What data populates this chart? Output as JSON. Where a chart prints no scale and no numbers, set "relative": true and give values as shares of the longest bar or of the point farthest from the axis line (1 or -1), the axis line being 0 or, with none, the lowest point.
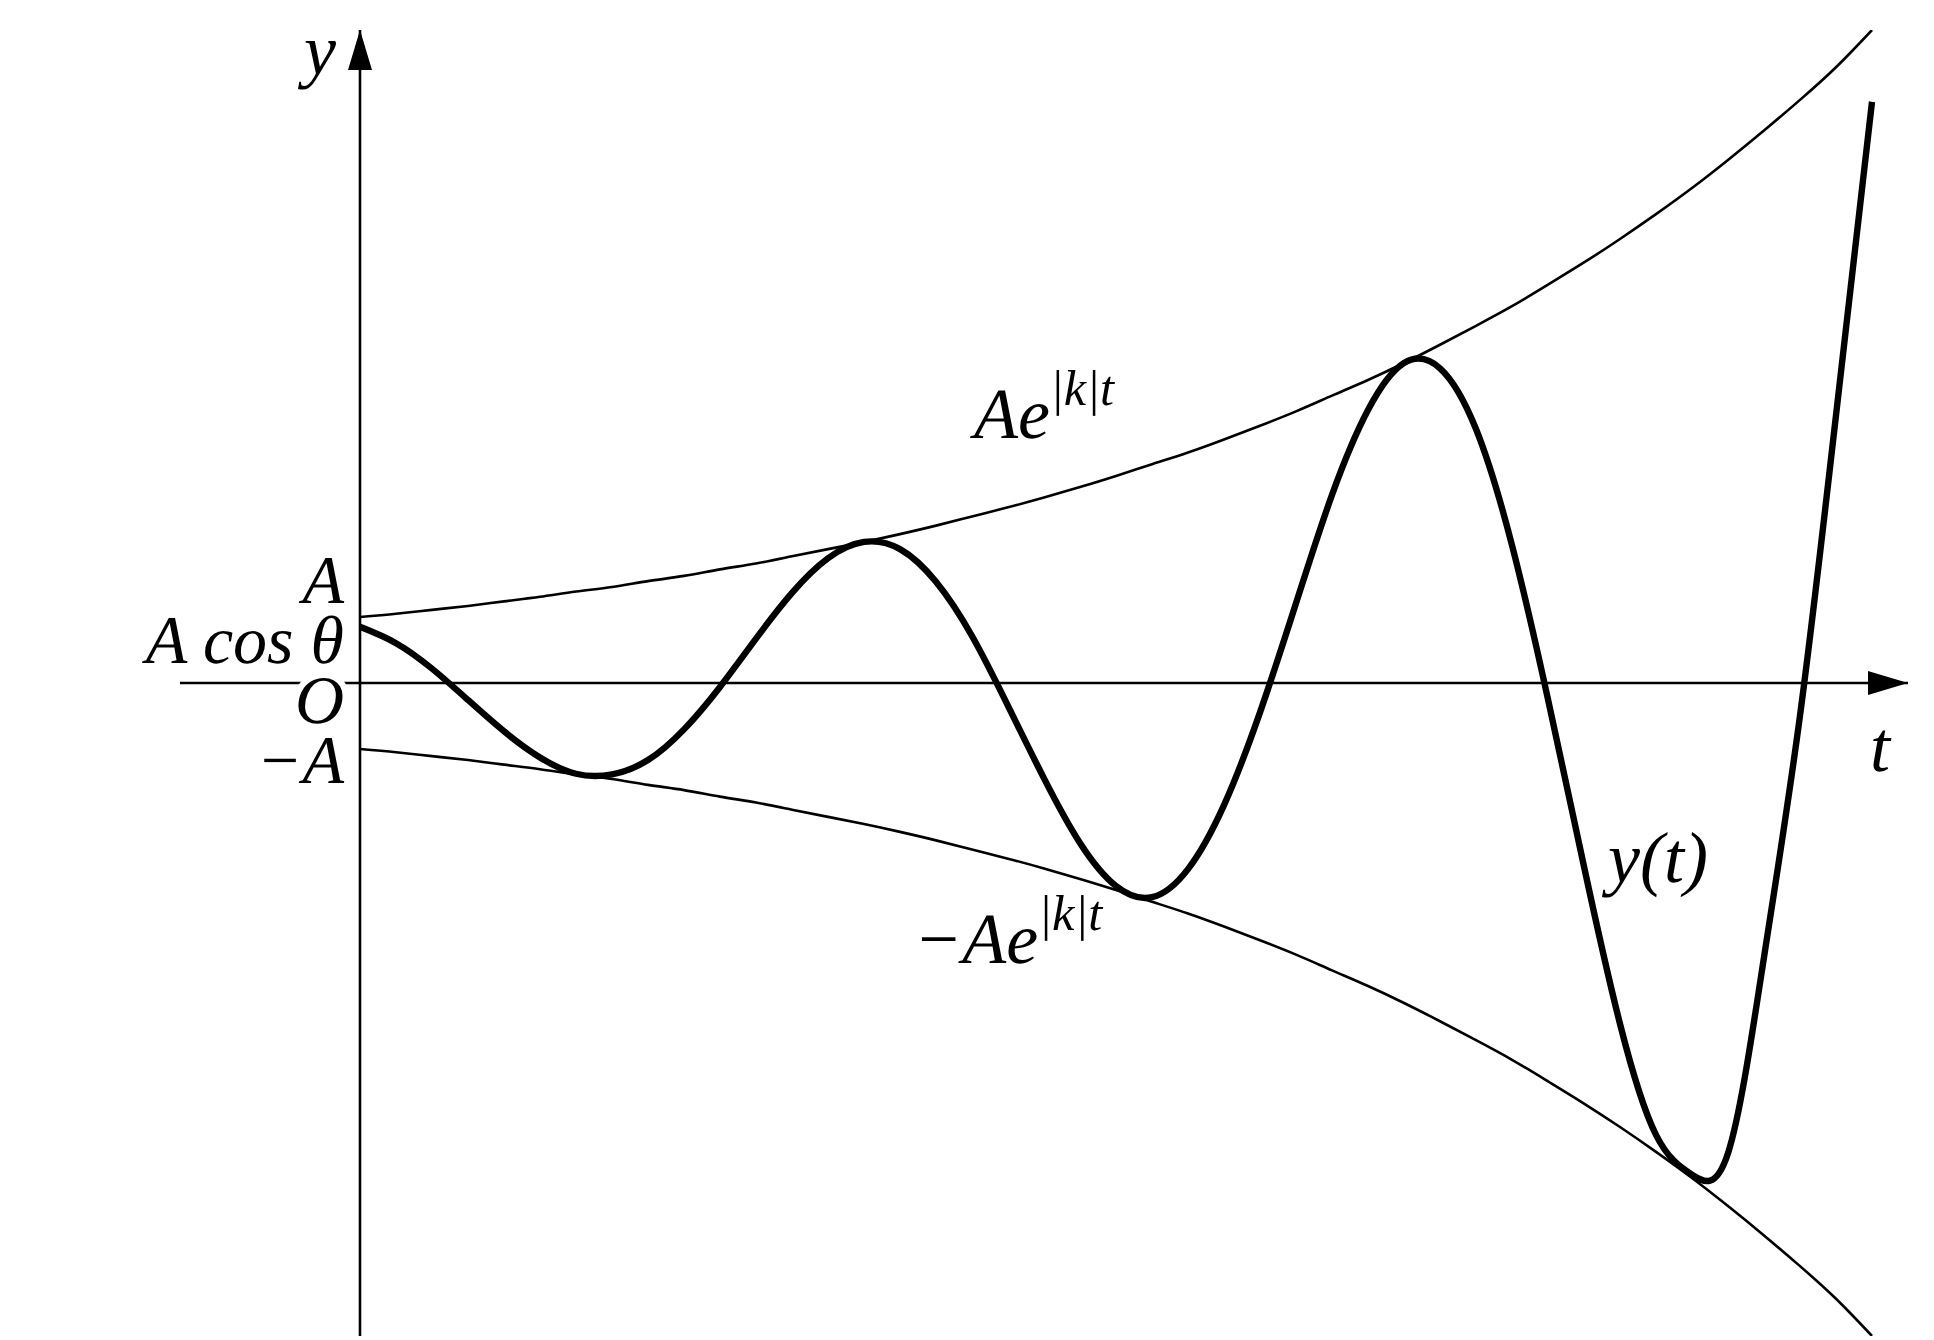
{
  "chart_data": {
    "type": "line",
    "relative": true,
    "xlabel": "t",
    "ylabel": "y",
    "categories": [
      null,
      null,
      null,
      null,
      null,
      null,
      null,
      null,
      null,
      null,
      null,
      null,
      null,
      null,
      null,
      null,
      null,
      null,
      null,
      null,
      null,
      null,
      null,
      null,
      null,
      null,
      null,
      null,
      null,
      null,
      null,
      null,
      null,
      null,
      null,
      null,
      null,
      null,
      null,
      null,
      null,
      null,
      null
    ],
    "series": [
      {
        "name": "y(t)",
        "color": "#000000",
        "values": [
          0.086,
          0.061,
          0.022,
          -0.026,
          -0.074,
          -0.114,
          -0.139,
          -0.14,
          -0.118,
          -0.071,
          -0.006,
          0.068,
          0.138,
          0.191,
          0.216,
          0.205,
          0.155,
          0.072,
          -0.035,
          -0.146,
          -0.245,
          -0.311,
          -0.328,
          -0.285,
          -0.187,
          -0.045,
          0.122,
          0.288,
          0.418,
          0.49,
          0.482,
          0.389,
          0.211,
          -0.025,
          -0.281,
          -0.522,
          -0.692,
          -0.753,
          -0.72,
          -0.42,
          -0.05,
          0.41,
          0.89
        ]
      },
      {
        "name": "Ae$^{|k|t}$",
        "color": "#000000",
        "values": [
          0.101,
          0.106,
          0.112,
          0.118,
          0.125,
          0.132,
          0.14,
          0.147,
          0.156,
          0.164,
          0.174,
          0.183,
          0.194,
          0.205,
          0.216,
          0.228,
          0.241,
          0.255,
          0.269,
          0.284,
          0.3,
          0.317,
          0.335,
          0.353,
          0.373,
          0.394,
          0.416,
          0.44,
          0.464,
          0.49,
          0.518,
          0.547,
          0.577,
          0.61,
          0.644,
          0.68,
          0.718,
          0.758,
          0.801,
          0.846,
          0.893,
          0.943,
          1
        ]
      },
      {
        "name": "−Ae$^{|k|t}$",
        "color": "#000000",
        "values": [
          -0.101,
          -0.106,
          -0.112,
          -0.118,
          -0.125,
          -0.132,
          -0.14,
          -0.147,
          -0.156,
          -0.164,
          -0.174,
          -0.183,
          -0.194,
          -0.205,
          -0.216,
          -0.228,
          -0.241,
          -0.255,
          -0.269,
          -0.284,
          -0.3,
          -0.317,
          -0.335,
          -0.353,
          -0.373,
          -0.394,
          -0.416,
          -0.44,
          -0.464,
          -0.49,
          -0.518,
          -0.547,
          -0.577,
          -0.61,
          -0.644,
          -0.68,
          -0.718,
          -0.758,
          -0.801,
          -0.846,
          -0.893,
          -0.943,
          -1
        ]
      }
    ],
    "annotations": [
      "A",
      "A cos θ",
      "O",
      "−A"
    ]
  }
}
